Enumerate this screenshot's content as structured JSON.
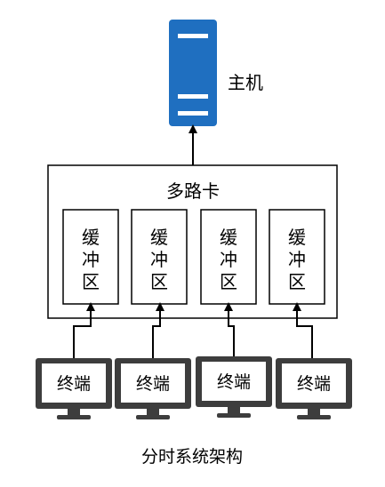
{
  "host": {
    "label": "主机",
    "icon": "server-icon",
    "color": "#1f6fc0"
  },
  "mux": {
    "label": "多路卡",
    "buffers": [
      {
        "lines": [
          "缓",
          "冲",
          "区"
        ]
      },
      {
        "lines": [
          "缓",
          "冲",
          "区"
        ]
      },
      {
        "lines": [
          "缓",
          "冲",
          "区"
        ]
      },
      {
        "lines": [
          "缓",
          "冲",
          "区"
        ]
      }
    ]
  },
  "terminals": [
    {
      "label": "终端",
      "icon": "monitor-icon"
    },
    {
      "label": "终端",
      "icon": "monitor-icon"
    },
    {
      "label": "终端",
      "icon": "monitor-icon"
    },
    {
      "label": "终端",
      "icon": "monitor-icon"
    }
  ],
  "caption": "分时系统架构",
  "colors": {
    "server": "#1f6fc0",
    "monitor": "#3d3d3d",
    "line": "#000000"
  }
}
